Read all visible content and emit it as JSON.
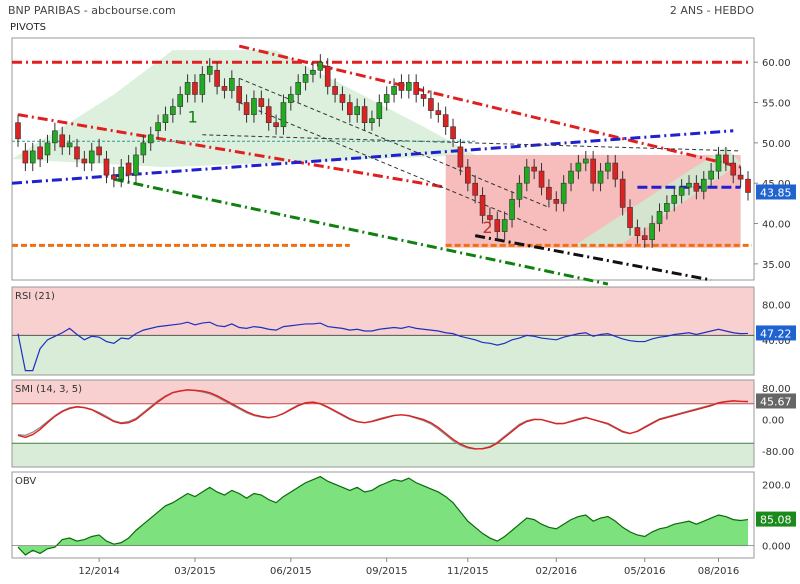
{
  "header": {
    "title": "BNP PARIBAS - abcbourse.com",
    "period": "2 ANS - HEBDO",
    "subtitle": "PIVOTS"
  },
  "colors": {
    "up_candle": "#22aa22",
    "down_candle": "#dd2222",
    "rsi_line": "#1f2fbf",
    "smi_main": "#e02020",
    "smi_signal": "#888888",
    "obv_fill": "#66dd66",
    "red_trend": "#e02020",
    "blue_trend": "#2020d0",
    "green_trend": "#108010",
    "orange_level": "#f07010",
    "black_trend": "#111111",
    "last_label_bg": "#1f63d0",
    "obv_label_bg": "#1a8a1a"
  },
  "chart_data": [
    {
      "type": "candlestick",
      "name": "price",
      "x_ticks": [
        "12/2014",
        "03/2015",
        "06/2015",
        "09/2015",
        "11/2015",
        "02/2016",
        "05/2016",
        "08/2016"
      ],
      "y_ticks": [
        "60.00",
        "55.00",
        "50.00",
        "45.00",
        "40.00",
        "35.00"
      ],
      "ylim": [
        33,
        63
      ],
      "last_value": "43.85",
      "annotations": [
        "1",
        "2"
      ],
      "close": [
        50.5,
        47.5,
        49.0,
        48.0,
        50.0,
        51.5,
        49.5,
        50.0,
        48.0,
        47.5,
        49.0,
        48.5,
        46.0,
        45.5,
        47.0,
        46.0,
        48.5,
        50.0,
        51.0,
        52.5,
        53.5,
        54.5,
        56.0,
        57.5,
        56.0,
        58.5,
        59.5,
        57.0,
        56.5,
        58.0,
        55.0,
        53.5,
        55.5,
        54.5,
        52.5,
        52.0,
        55.0,
        56.0,
        57.5,
        58.5,
        59.0,
        60.0,
        57.0,
        56.0,
        55.0,
        53.5,
        54.5,
        52.5,
        53.0,
        55.0,
        56.0,
        57.0,
        56.5,
        57.5,
        56.0,
        55.5,
        54.0,
        53.5,
        52.0,
        50.5,
        47.0,
        45.0,
        43.5,
        41.0,
        40.5,
        39.0,
        40.5,
        43.0,
        45.0,
        47.0,
        46.5,
        44.5,
        43.0,
        42.5,
        45.0,
        46.5,
        47.5,
        48.0,
        45.0,
        46.5,
        47.5,
        45.5,
        42.0,
        39.5,
        38.5,
        38.0,
        40.0,
        41.5,
        42.5,
        43.5,
        44.5,
        45.0,
        44.0,
        45.5,
        46.5,
        48.5,
        47.5,
        46.0,
        45.5,
        43.85
      ],
      "open": [
        52.5,
        49.0,
        47.5,
        49.5,
        48.5,
        50.0,
        51.0,
        49.5,
        49.5,
        48.0,
        47.5,
        49.5,
        48.0,
        46.0,
        45.5,
        47.5,
        46.0,
        48.5,
        50.0,
        51.5,
        52.5,
        53.5,
        54.5,
        56.0,
        57.5,
        56.0,
        58.5,
        59.0,
        57.0,
        56.5,
        57.0,
        55.0,
        53.5,
        55.5,
        54.5,
        52.5,
        52.0,
        55.0,
        56.0,
        57.5,
        58.5,
        59.0,
        59.5,
        57.0,
        56.0,
        55.0,
        53.5,
        54.5,
        52.5,
        53.0,
        55.0,
        56.0,
        57.5,
        56.5,
        57.5,
        56.0,
        55.5,
        54.0,
        53.5,
        52.0,
        49.5,
        47.0,
        45.0,
        43.5,
        41.0,
        40.5,
        39.0,
        40.5,
        43.0,
        45.0,
        47.0,
        46.5,
        44.5,
        43.0,
        42.5,
        45.0,
        46.5,
        47.5,
        48.0,
        45.0,
        46.5,
        47.5,
        45.5,
        42.0,
        39.5,
        38.5,
        38.0,
        40.0,
        41.5,
        42.5,
        43.5,
        44.5,
        45.0,
        44.0,
        45.5,
        46.5,
        48.5,
        47.5,
        46.0,
        45.5
      ]
    },
    {
      "type": "line",
      "name": "RSI (21)",
      "y_ticks": [
        "80.00",
        "40.00"
      ],
      "ylim": [
        0,
        100
      ],
      "last_value": "47.22",
      "values": [
        47,
        5,
        5,
        30,
        40,
        44,
        48,
        53,
        46,
        40,
        44,
        43,
        38,
        36,
        42,
        41,
        47,
        51,
        53,
        55,
        56,
        57,
        58,
        60,
        57,
        59,
        60,
        56,
        55,
        58,
        54,
        53,
        55,
        54,
        52,
        51,
        55,
        56,
        57,
        58,
        58,
        59,
        55,
        54,
        53,
        51,
        52,
        50,
        50,
        52,
        53,
        54,
        53,
        55,
        53,
        52,
        51,
        50,
        48,
        47,
        44,
        42,
        40,
        37,
        36,
        34,
        36,
        40,
        42,
        45,
        44,
        42,
        41,
        40,
        43,
        45,
        47,
        48,
        44,
        46,
        47,
        44,
        41,
        39,
        38,
        38,
        41,
        43,
        44,
        46,
        47,
        48,
        46,
        48,
        50,
        52,
        50,
        48,
        47,
        47.22
      ]
    },
    {
      "type": "line",
      "name": "SMI (14, 3, 5)",
      "y_ticks": [
        "80.00",
        "0.00",
        "-80.00"
      ],
      "ylim": [
        -120,
        100
      ],
      "last_value": "45.67",
      "series": [
        {
          "values": [
            -40,
            -45,
            -38,
            -25,
            -8,
            8,
            20,
            28,
            32,
            30,
            25,
            15,
            5,
            -5,
            -10,
            -8,
            0,
            15,
            30,
            45,
            58,
            68,
            72,
            75,
            74,
            72,
            68,
            60,
            50,
            40,
            30,
            20,
            12,
            8,
            5,
            8,
            15,
            25,
            35,
            42,
            44,
            40,
            32,
            22,
            12,
            2,
            -5,
            -8,
            -5,
            0,
            5,
            10,
            12,
            10,
            5,
            0,
            -8,
            -20,
            -35,
            -50,
            -62,
            -70,
            -74,
            -74,
            -70,
            -60,
            -45,
            -30,
            -15,
            -5,
            0,
            0,
            -5,
            -10,
            -10,
            -5,
            0,
            5,
            0,
            -5,
            -10,
            -20,
            -30,
            -35,
            -30,
            -20,
            -10,
            0,
            5,
            10,
            15,
            20,
            25,
            30,
            35,
            42,
            45,
            47,
            46,
            45.67
          ]
        },
        {
          "values": [
            -38,
            -40,
            -32,
            -20,
            -5,
            10,
            22,
            30,
            33,
            31,
            26,
            18,
            8,
            -3,
            -8,
            -5,
            3,
            18,
            33,
            48,
            60,
            69,
            73,
            75,
            73,
            70,
            65,
            57,
            47,
            37,
            27,
            17,
            10,
            6,
            4,
            8,
            16,
            27,
            37,
            43,
            44,
            39,
            30,
            20,
            10,
            0,
            -6,
            -8,
            -4,
            2,
            7,
            11,
            12,
            9,
            3,
            -3,
            -11,
            -24,
            -39,
            -54,
            -65,
            -72,
            -75,
            -73,
            -68,
            -57,
            -42,
            -27,
            -12,
            -3,
            1,
            0,
            -6,
            -11,
            -10,
            -4,
            2,
            6,
            0,
            -6,
            -12,
            -22,
            -32,
            -36,
            -29,
            -18,
            -8,
            2,
            7,
            12,
            17,
            22,
            27,
            32,
            37,
            43,
            46,
            48,
            46,
            45
          ]
        }
      ]
    },
    {
      "type": "area",
      "name": "OBV",
      "y_ticks": [
        "200.0",
        "0.000"
      ],
      "ylim": [
        -40,
        240
      ],
      "last_value": "85.08",
      "values": [
        -5,
        -30,
        -15,
        -25,
        -10,
        -5,
        20,
        25,
        15,
        20,
        30,
        35,
        15,
        5,
        10,
        25,
        50,
        70,
        90,
        110,
        130,
        140,
        155,
        170,
        160,
        175,
        190,
        175,
        165,
        180,
        170,
        155,
        170,
        165,
        150,
        140,
        160,
        175,
        190,
        205,
        215,
        225,
        210,
        200,
        190,
        180,
        190,
        175,
        180,
        195,
        205,
        215,
        210,
        220,
        205,
        195,
        185,
        175,
        160,
        140,
        110,
        80,
        60,
        40,
        25,
        15,
        30,
        50,
        70,
        90,
        85,
        70,
        60,
        55,
        70,
        85,
        95,
        100,
        80,
        90,
        95,
        80,
        60,
        45,
        35,
        30,
        45,
        55,
        60,
        70,
        75,
        80,
        70,
        80,
        90,
        100,
        95,
        85,
        82,
        85.08
      ]
    }
  ]
}
